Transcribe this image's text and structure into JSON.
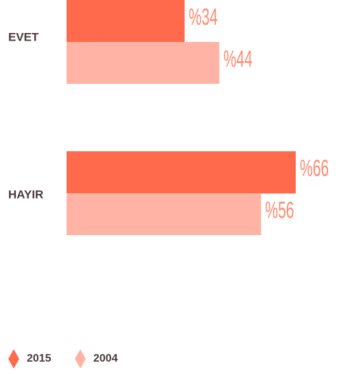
{
  "chart_data": {
    "type": "bar",
    "orientation": "horizontal",
    "categories": [
      "EVET",
      "HAYIR"
    ],
    "series": [
      {
        "name": "2015",
        "color": "#ff6a4d",
        "values": [
          34,
          66
        ],
        "value_labels": [
          "%34",
          "%66"
        ]
      },
      {
        "name": "2004",
        "color": "#ffb3a4",
        "values": [
          44,
          56
        ],
        "value_labels": [
          "%44",
          "%56"
        ]
      }
    ]
  }
}
